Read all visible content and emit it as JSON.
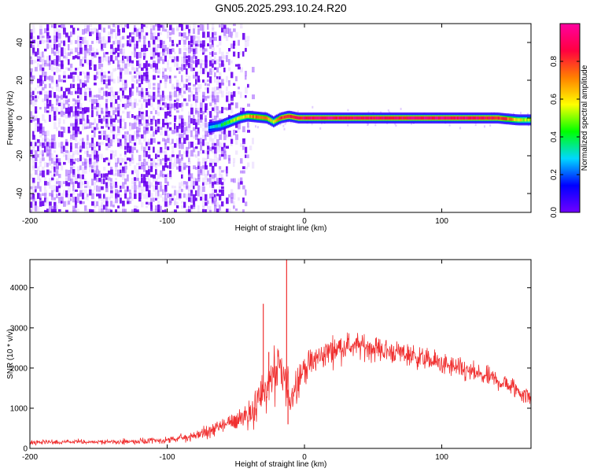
{
  "title": "GN05.2025.293.10.24.R20",
  "chart_data": [
    {
      "type": "heatmap",
      "xlabel": "Height of straight line (km)",
      "ylabel": "Frequency (Hz)",
      "xlim": [
        -200,
        165
      ],
      "ylim": [
        -50,
        50
      ],
      "xticks": [
        -200,
        -100,
        0,
        100
      ],
      "yticks": [
        -40,
        -20,
        0,
        20,
        40
      ],
      "colorbar": {
        "label": "Normalized spectral amplitude",
        "range": [
          0.0,
          1.0
        ],
        "ticks": [
          0.0,
          0.2,
          0.4,
          0.6,
          0.8
        ],
        "stops": [
          "#7000ff",
          "#0000ff",
          "#00d8ff",
          "#00ff00",
          "#ffff00",
          "#ff8000",
          "#ff0040",
          "#ff00a0"
        ]
      },
      "noise_region": {
        "x_start": -200,
        "x_end": -38,
        "freq_min": -50,
        "freq_max": 50,
        "typical_amplitude": 0.1
      },
      "signal_band": {
        "x": [
          -70,
          -62,
          -55,
          -48,
          -42,
          -35,
          -28,
          -23,
          -18,
          -12,
          -5,
          5,
          20,
          40,
          60,
          80,
          100,
          120,
          140,
          155,
          165
        ],
        "freq": [
          -5,
          -4,
          -2,
          0,
          1,
          0.5,
          0,
          -2,
          0,
          1,
          0,
          0,
          0,
          0,
          0,
          0,
          0,
          0,
          0,
          -1,
          -1
        ],
        "amplitude": [
          0.25,
          0.35,
          0.5,
          0.6,
          0.65,
          0.75,
          0.7,
          0.55,
          0.8,
          0.85,
          0.88,
          0.9,
          0.92,
          0.9,
          0.88,
          0.9,
          0.92,
          0.9,
          0.85,
          0.6,
          0.5
        ]
      }
    },
    {
      "type": "line",
      "xlabel": "Height of straight line (km)",
      "ylabel": "SNR (10 * v/v)",
      "xlim": [
        -200,
        165
      ],
      "ylim": [
        0,
        4700
      ],
      "xticks": [
        -200,
        -100,
        0,
        100
      ],
      "yticks": [
        0,
        1000,
        2000,
        3000,
        4000
      ],
      "color": "#f03030",
      "series": [
        {
          "name": "SNR",
          "x": [
            -200,
            -180,
            -160,
            -140,
            -120,
            -100,
            -90,
            -80,
            -70,
            -60,
            -50,
            -40,
            -35,
            -30,
            -25,
            -20,
            -15,
            -10,
            -5,
            0,
            10,
            20,
            30,
            40,
            50,
            60,
            70,
            80,
            90,
            100,
            110,
            120,
            130,
            140,
            150,
            160,
            165
          ],
          "y": [
            150,
            150,
            160,
            160,
            170,
            200,
            250,
            320,
            420,
            560,
            700,
            900,
            1100,
            1400,
            1650,
            1900,
            1700,
            1300,
            1700,
            2000,
            2250,
            2450,
            2550,
            2550,
            2500,
            2420,
            2380,
            2300,
            2200,
            2100,
            2000,
            1900,
            1800,
            1700,
            1550,
            1350,
            1250
          ],
          "noise_amplitude": [
            60,
            60,
            60,
            60,
            70,
            80,
            100,
            120,
            150,
            200,
            300,
            400,
            550,
            700,
            700,
            800,
            700,
            600,
            450,
            350,
            350,
            350,
            320,
            300,
            300,
            300,
            280,
            280,
            280,
            270,
            260,
            250,
            250,
            250,
            250,
            250,
            250
          ]
        }
      ],
      "spikes": [
        {
          "x": -30,
          "y": 3600
        },
        {
          "x": -26,
          "y": 2400
        },
        {
          "x": -13,
          "y": 4700
        },
        {
          "x": -12,
          "y": 600
        }
      ]
    }
  ]
}
